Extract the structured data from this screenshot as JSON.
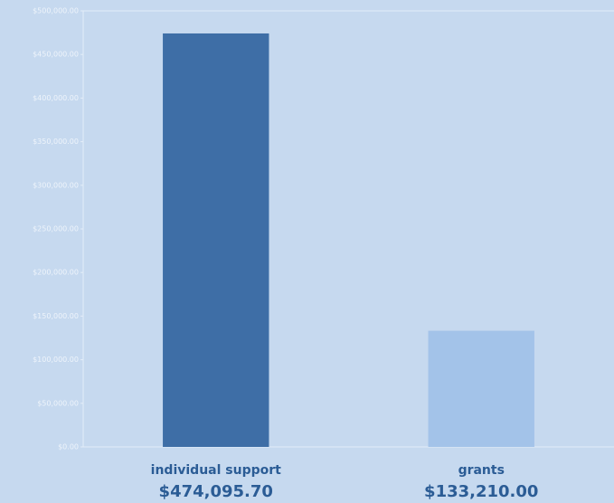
{
  "chart_data": {
    "type": "bar",
    "categories": [
      "individual support",
      "grants"
    ],
    "values": [
      474095.7,
      133210.0
    ],
    "value_labels": [
      "$474,095.70",
      "$133,210.00"
    ],
    "colors": [
      "#3e6ea6",
      "#a3c3e9"
    ],
    "ylim": [
      0,
      500000
    ],
    "yticks": [
      {
        "value": 0,
        "label": "$0.00"
      },
      {
        "value": 50000,
        "label": "$50,000.00"
      },
      {
        "value": 100000,
        "label": "$100,000.00"
      },
      {
        "value": 150000,
        "label": "$150,000.00"
      },
      {
        "value": 200000,
        "label": "$200,000.00"
      },
      {
        "value": 250000,
        "label": "$250,000.00"
      },
      {
        "value": 300000,
        "label": "$300,000.00"
      },
      {
        "value": 350000,
        "label": "$350,000.00"
      },
      {
        "value": 400000,
        "label": "$400,000.00"
      },
      {
        "value": 450000,
        "label": "$450,000.00"
      },
      {
        "value": 500000,
        "label": "$500,000.00"
      }
    ]
  }
}
